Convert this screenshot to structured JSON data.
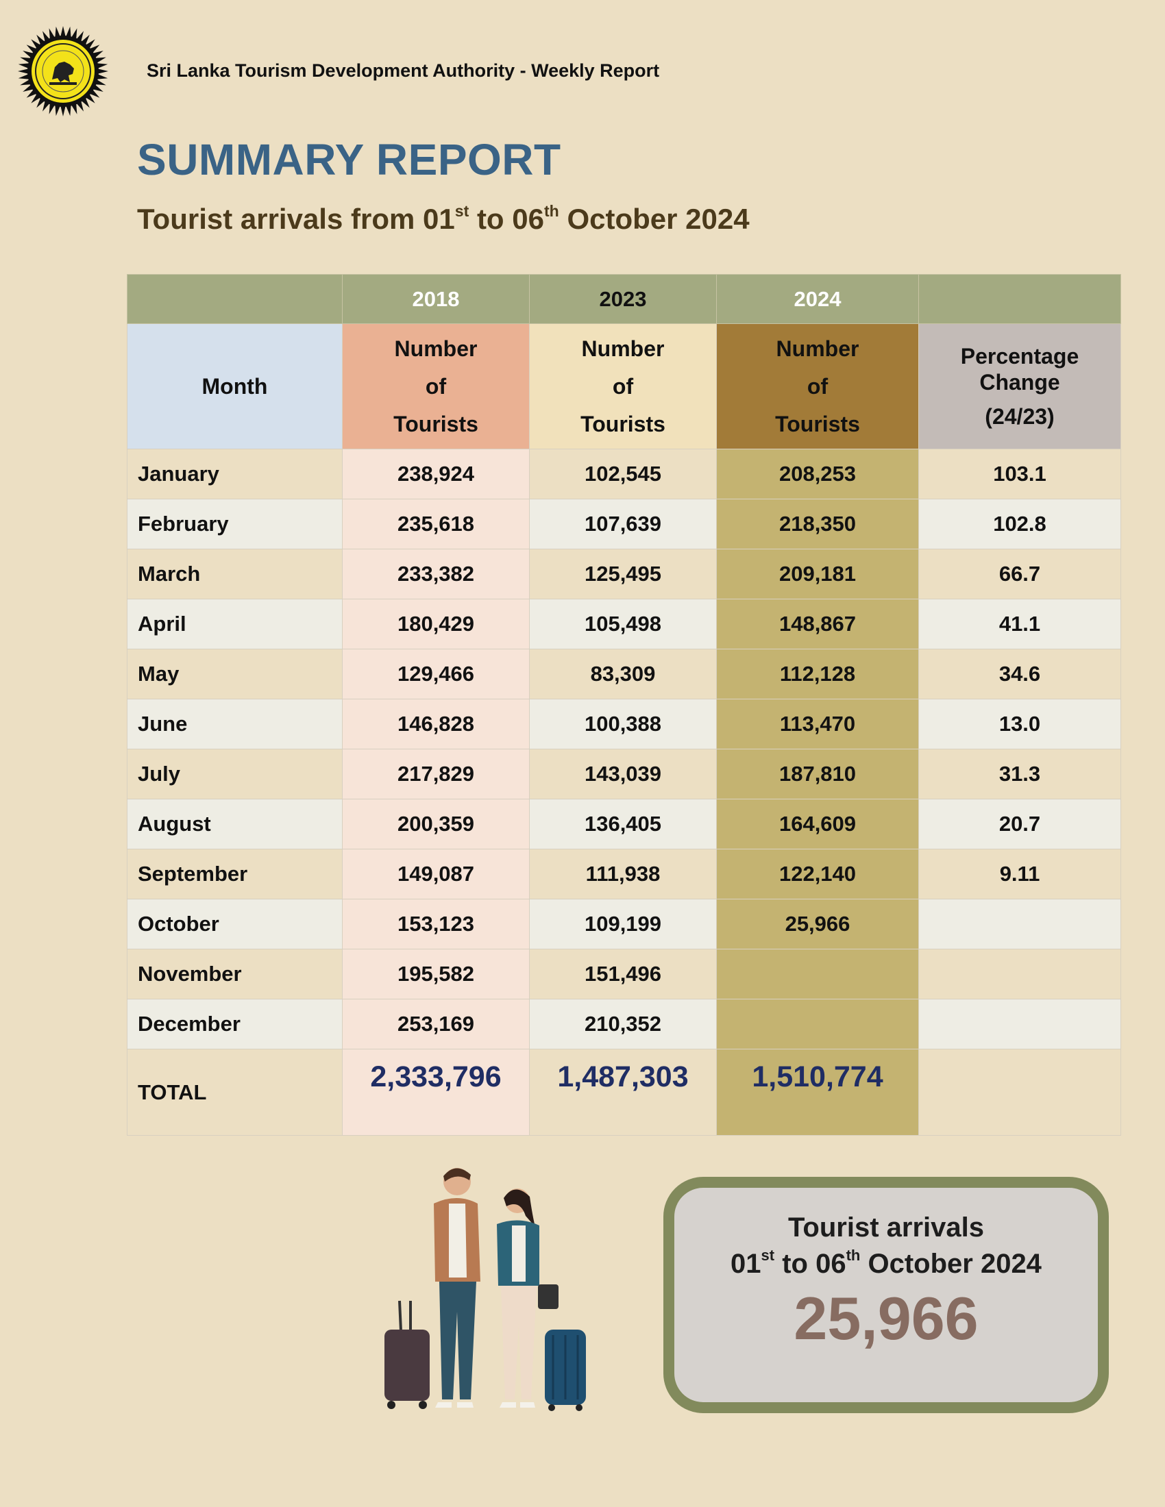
{
  "header": {
    "organization": "Sri Lanka Tourism Development Authority - Weekly Report",
    "title": "SUMMARY REPORT",
    "subtitle": {
      "prefix": "Tourist arrivals from 01",
      "sup1": "st",
      "middle": " to 06",
      "sup2": "th",
      "suffix": " October 2024"
    }
  },
  "table": {
    "years": [
      "2018",
      "2023",
      "2024"
    ],
    "month_header": "Month",
    "count_header": [
      "Number",
      "of",
      "Tourists"
    ],
    "pct_header": [
      "Percentage",
      "Change",
      "(24/23)"
    ],
    "rows": [
      {
        "month": "January",
        "y2018": "238,924",
        "y2023": "102,545",
        "y2024": "208,253",
        "pct": "103.1"
      },
      {
        "month": "February",
        "y2018": "235,618",
        "y2023": "107,639",
        "y2024": "218,350",
        "pct": "102.8"
      },
      {
        "month": "March",
        "y2018": "233,382",
        "y2023": "125,495",
        "y2024": "209,181",
        "pct": "66.7"
      },
      {
        "month": "April",
        "y2018": "180,429",
        "y2023": "105,498",
        "y2024": "148,867",
        "pct": "41.1"
      },
      {
        "month": "May",
        "y2018": "129,466",
        "y2023": "83,309",
        "y2024": "112,128",
        "pct": "34.6"
      },
      {
        "month": "June",
        "y2018": "146,828",
        "y2023": "100,388",
        "y2024": "113,470",
        "pct": "13.0"
      },
      {
        "month": "July",
        "y2018": "217,829",
        "y2023": "143,039",
        "y2024": "187,810",
        "pct": "31.3"
      },
      {
        "month": "August",
        "y2018": "200,359",
        "y2023": "136,405",
        "y2024": "164,609",
        "pct": "20.7"
      },
      {
        "month": "September",
        "y2018": "149,087",
        "y2023": "111,938",
        "y2024": "122,140",
        "pct": "9.11"
      },
      {
        "month": "October",
        "y2018": "153,123",
        "y2023": "109,199",
        "y2024": "25,966",
        "pct": ""
      },
      {
        "month": "November",
        "y2018": "195,582",
        "y2023": "151,496",
        "y2024": "",
        "pct": ""
      },
      {
        "month": "December",
        "y2018": "253,169",
        "y2023": "210,352",
        "y2024": "",
        "pct": ""
      }
    ],
    "total": {
      "label": "TOTAL",
      "y2018": "2,333,796",
      "y2023": "1,487,303",
      "y2024": "1,510,774"
    }
  },
  "summary_box": {
    "line1": "Tourist arrivals",
    "line2": {
      "prefix": "01",
      "sup1": "st",
      "middle": " to 06",
      "sup2": "th",
      "suffix": " October 2024"
    },
    "value": "25,966"
  },
  "colors": {
    "page_bg": "#ecdfc3",
    "title": "#3a6386",
    "subtitle": "#4b3a1b",
    "total_values": "#1f2d64",
    "box_border": "#828a5c",
    "box_value": "#876c61"
  },
  "icons": {
    "logo": "sltda-emblem-icon",
    "illustration": "travelers-with-luggage-illustration"
  }
}
